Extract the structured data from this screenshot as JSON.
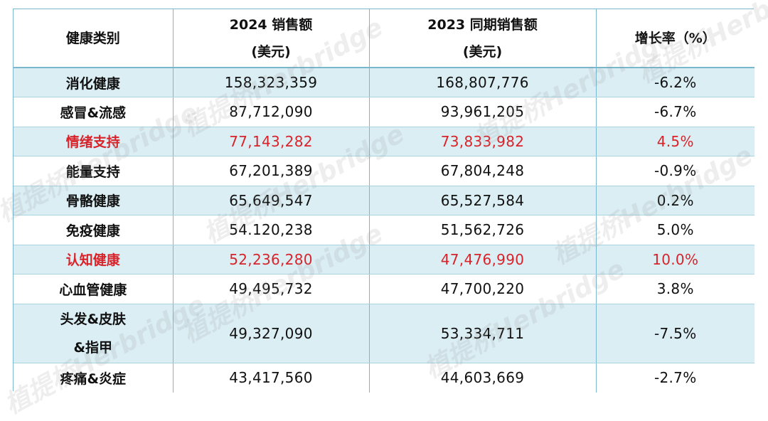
{
  "table": {
    "headers": [
      {
        "line1": "健康类别",
        "line2": ""
      },
      {
        "line1": "2024 销售额",
        "line2": "(美元)"
      },
      {
        "line1": "2023 同期销售额",
        "line2": "(美元)"
      },
      {
        "line1": "增长率（%）",
        "line2": ""
      }
    ],
    "rows": [
      {
        "category": "消化健康",
        "category_line2": "",
        "sales_2024": "158,323,359",
        "sales_2023": "168,807,776",
        "growth": "-6.2%",
        "highlight": false
      },
      {
        "category": "感冒&流感",
        "category_line2": "",
        "sales_2024": "87,712,090",
        "sales_2023": "93,961,205",
        "growth": "-6.7%",
        "highlight": false
      },
      {
        "category": "情绪支持",
        "category_line2": "",
        "sales_2024": "77,143,282",
        "sales_2023": "73,833,982",
        "growth": "4.5%",
        "highlight": true
      },
      {
        "category": "能量支持",
        "category_line2": "",
        "sales_2024": "67,201,389",
        "sales_2023": "67,804,248",
        "growth": "-0.9%",
        "highlight": false
      },
      {
        "category": "骨骼健康",
        "category_line2": "",
        "sales_2024": "65,649,547",
        "sales_2023": "65,527,584",
        "growth": "0.2%",
        "highlight": false
      },
      {
        "category": "免疫健康",
        "category_line2": "",
        "sales_2024": "54.120,238",
        "sales_2023": "51,562,726",
        "growth": "5.0%",
        "highlight": false
      },
      {
        "category": "认知健康",
        "category_line2": "",
        "sales_2024": "52,236,280",
        "sales_2023": "47,476,990",
        "growth": "10.0%",
        "highlight": true
      },
      {
        "category": "心血管健康",
        "category_line2": "",
        "sales_2024": "49,495,732",
        "sales_2023": "47,700,220",
        "growth": "3.8%",
        "highlight": false
      },
      {
        "category": "头发&皮肤",
        "category_line2": "&指甲",
        "sales_2024": "49,327,090",
        "sales_2023": "53,334,711",
        "growth": "-7.5%",
        "highlight": false
      },
      {
        "category": "疼痛&炎症",
        "category_line2": "",
        "sales_2024": "43,417,560",
        "sales_2023": "44,603,669",
        "growth": "-2.7%",
        "highlight": false
      }
    ]
  },
  "watermark": {
    "text": "植提桥Herbridge"
  },
  "colors": {
    "border": "#7ab6cc",
    "row_shade": "#dbeef4",
    "highlight_text": "#d8232a"
  }
}
